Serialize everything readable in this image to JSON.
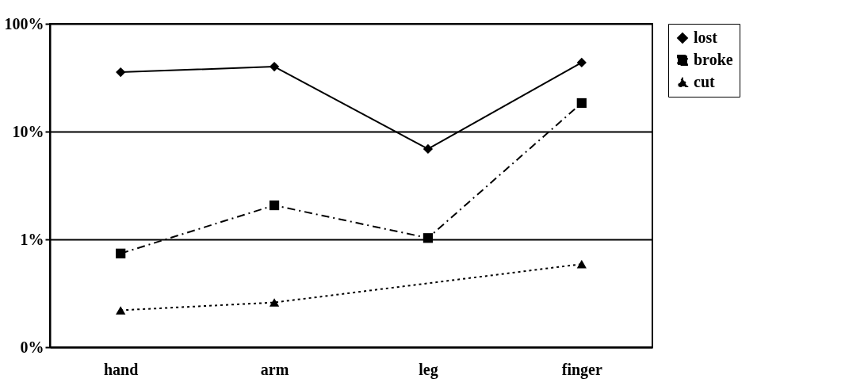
{
  "chart_data": {
    "type": "line",
    "categories": [
      "hand",
      "arm",
      "leg",
      "finger"
    ],
    "series": [
      {
        "name": "lost",
        "color": "#000000",
        "marker": "diamond",
        "line_style": "solid",
        "values": [
          35.6,
          40,
          6.9,
          43.7
        ]
      },
      {
        "name": "broke",
        "color": "#000000",
        "marker": "square",
        "line_style": "dashed",
        "values": [
          0.74,
          2.07,
          1.03,
          18.4
        ]
      },
      {
        "name": "cut",
        "color": "#000000",
        "marker": "triangle",
        "line_style": "dotted",
        "values": [
          0.22,
          0.26,
          null,
          0.59
        ]
      }
    ],
    "log": true,
    "ylim": [
      0.1,
      100
    ],
    "yticks": [
      {
        "value": 0.1,
        "label": "0%"
      },
      {
        "value": 1,
        "label": "1%"
      },
      {
        "value": 10,
        "label": "10%"
      },
      {
        "value": 100,
        "label": "100%"
      }
    ],
    "grid": "y",
    "legend": "right"
  }
}
